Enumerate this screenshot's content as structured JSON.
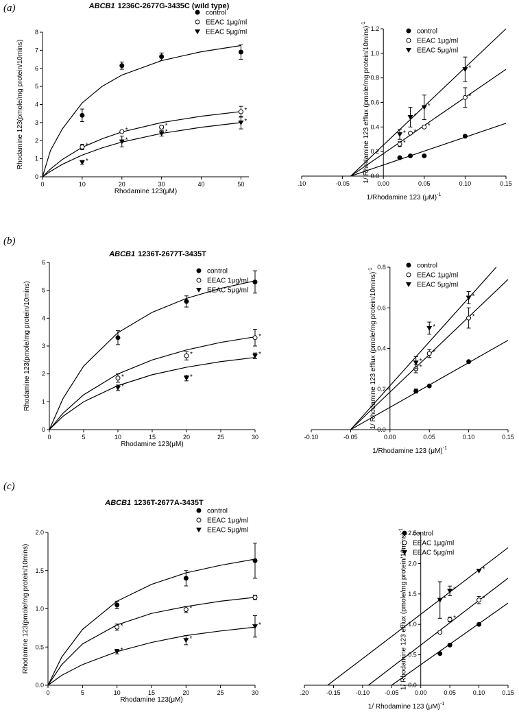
{
  "chart_data": [
    {
      "type": "scatter",
      "axes": "box",
      "panel_label": "(a)",
      "title": {
        "gene": "ABCB1",
        "text": "1236C-2677G-3435C (wild type)"
      },
      "x_label": "Rhodamine 123(μM)",
      "y_label": "Rhodamine 123(pmole/mg protein/10mins)",
      "xlim": [
        0,
        52
      ],
      "xticks": [
        0,
        10,
        20,
        30,
        40,
        50
      ],
      "ylim": [
        0,
        8
      ],
      "yticks": [
        0,
        1,
        2,
        3,
        4,
        5,
        6,
        7,
        8
      ],
      "series": [
        {
          "name": "control",
          "marker": "filled-circle",
          "color": "#000000",
          "x": [
            10,
            20,
            30,
            50
          ],
          "values": [
            3.4,
            6.15,
            6.65,
            6.9
          ],
          "errors": [
            0.35,
            0.2,
            0.2,
            0.4
          ]
        },
        {
          "name": "EEAC 1μg/ml",
          "marker": "open-circle",
          "color": "#000000",
          "x": [
            10,
            20,
            30,
            50
          ],
          "values": [
            1.65,
            2.5,
            2.75,
            3.6
          ],
          "errors": [
            0.15,
            null,
            0.1,
            0.3
          ],
          "point_labels": [
            "*",
            "*",
            "*",
            "*"
          ]
        },
        {
          "name": "EEAC 5μg/ml",
          "marker": "filled-triangle-down",
          "color": "#000000",
          "x": [
            10,
            20,
            30,
            50
          ],
          "values": [
            0.8,
            1.95,
            2.4,
            3.0
          ],
          "errors": [
            0.1,
            0.3,
            0.15,
            0.35
          ],
          "point_labels": [
            "*",
            "*",
            "*",
            "*"
          ]
        }
      ],
      "fits": [
        {
          "x": [
            0,
            2,
            5,
            10,
            15,
            20,
            30,
            40,
            50
          ],
          "values": [
            0,
            1.45,
            2.65,
            4.09,
            5.0,
            5.63,
            6.43,
            6.92,
            7.26
          ]
        },
        {
          "x": [
            0,
            2,
            5,
            10,
            15,
            20,
            30,
            40,
            50
          ],
          "values": [
            0,
            0.43,
            0.96,
            1.63,
            2.1,
            2.48,
            3.0,
            3.35,
            3.61
          ]
        },
        {
          "x": [
            0,
            2,
            5,
            10,
            15,
            20,
            30,
            40,
            50
          ],
          "values": [
            0,
            0.3,
            0.69,
            1.2,
            1.6,
            1.92,
            2.4,
            2.74,
            3.0
          ]
        }
      ]
    },
    {
      "type": "scatter",
      "axes": "origin",
      "x_label": "1/Rhodamine 123 (μM)",
      "x_label_exponent": "-1",
      "y_label": "1/ Rhodamine 123 efflux (pmole/mg protein/10mins)",
      "y_label_exponent": "-1",
      "xlim": [
        -0.1,
        0.15
      ],
      "xticks": [
        {
          "value": -0.1,
          "label": ".10"
        },
        {
          "value": -0.05,
          "label": "-0.05"
        },
        {
          "value": 0,
          "label": "0.00"
        },
        {
          "value": 0.05,
          "label": "0.05"
        },
        {
          "value": 0.1,
          "label": "0.10"
        },
        {
          "value": 0.15,
          "label": "0.15"
        }
      ],
      "ylim": [
        0,
        1.2
      ],
      "yticks": [
        {
          "value": 0,
          "label": "0.0"
        },
        0.2,
        0.4,
        0.6,
        0.8,
        {
          "value": 1,
          "label": "1.0"
        },
        1.2
      ],
      "series": [
        {
          "name": "control",
          "marker": "filled-circle",
          "color": "#000000",
          "x": [
            0.02,
            0.033,
            0.05,
            0.1
          ],
          "values": [
            0.15,
            0.165,
            0.165,
            0.325
          ],
          "errors": [
            null,
            null,
            null,
            null
          ]
        },
        {
          "name": "EEAC 1μg/ml",
          "marker": "open-circle",
          "color": "#000000",
          "x": [
            0.02,
            0.033,
            0.05,
            0.1
          ],
          "values": [
            0.26,
            0.35,
            0.4,
            0.64
          ],
          "errors": [
            0.02,
            null,
            null,
            0.08
          ],
          "point_labels": [
            "*",
            "*",
            "*",
            "*"
          ]
        },
        {
          "name": "EEAC 5μg/ml",
          "marker": "filled-triangle-down",
          "color": "#000000",
          "x": [
            0.02,
            0.033,
            0.05,
            0.1
          ],
          "values": [
            0.34,
            0.48,
            0.56,
            0.87
          ],
          "errors": [
            0.04,
            0.08,
            0.1,
            0.1
          ],
          "point_labels": [
            "*",
            "*",
            "*",
            "*"
          ]
        }
      ],
      "fits": [
        {
          "x": [
            -0.04,
            0.15
          ],
          "values": [
            0,
            0.43
          ]
        },
        {
          "x": [
            -0.04,
            0.15
          ],
          "values": [
            0,
            0.87
          ]
        },
        {
          "x": [
            -0.04,
            0.15
          ],
          "values": [
            0,
            1.2
          ]
        }
      ]
    },
    {
      "type": "scatter",
      "axes": "box",
      "panel_label": "(b)",
      "title": {
        "gene": "ABCB1",
        "text": "1236T-2677T-3435T"
      },
      "x_label": "Rhodamine 123(μM)",
      "y_label": "Rhodamine 123(pmole/mg protein/10mins)",
      "xlim": [
        0,
        30
      ],
      "xticks": [
        0,
        5,
        10,
        15,
        20,
        25,
        30
      ],
      "ylim": [
        0,
        6
      ],
      "yticks": [
        0,
        1,
        2,
        3,
        4,
        5,
        6
      ],
      "series": [
        {
          "name": "control",
          "marker": "filled-circle",
          "color": "#000000",
          "x": [
            10,
            20,
            30
          ],
          "values": [
            3.3,
            4.6,
            5.3
          ],
          "errors": [
            0.25,
            0.2,
            0.4
          ]
        },
        {
          "name": "EEAC 1μg/ml",
          "marker": "open-circle",
          "color": "#000000",
          "x": [
            10,
            20,
            30
          ],
          "values": [
            1.85,
            2.65,
            3.3
          ],
          "errors": [
            0.15,
            0.15,
            0.3
          ],
          "point_labels": [
            "*",
            "*",
            "*"
          ]
        },
        {
          "name": "EEAC 5μg/ml",
          "marker": "filled-triangle-down",
          "color": "#000000",
          "x": [
            10,
            20,
            30
          ],
          "values": [
            1.5,
            1.85,
            2.65
          ],
          "errors": [
            0.1,
            0.1,
            0.1
          ],
          "point_labels": [
            "*",
            "*",
            "*"
          ]
        }
      ],
      "fits": [
        {
          "x": [
            0,
            2,
            5,
            10,
            15,
            20,
            25,
            30
          ],
          "values": [
            0,
            1.12,
            2.28,
            3.48,
            4.21,
            4.71,
            5.07,
            5.34
          ]
        },
        {
          "x": [
            0,
            2,
            5,
            10,
            15,
            20,
            25,
            30
          ],
          "values": [
            0,
            0.59,
            1.25,
            2.0,
            2.5,
            2.86,
            3.13,
            3.33
          ]
        },
        {
          "x": [
            0,
            2,
            5,
            10,
            15,
            20,
            25,
            30
          ],
          "values": [
            0,
            0.48,
            1.0,
            1.58,
            1.97,
            2.24,
            2.44,
            2.59
          ]
        }
      ]
    },
    {
      "type": "scatter",
      "axes": "origin",
      "x_label": "1/Rhodamine 123 (μM)",
      "x_label_exponent": "-1",
      "y_label": "1/ Rhodamine 123 efflux (pmole/mg protein/10mins)",
      "y_label_exponent": "-1",
      "xlim": [
        -0.1,
        0.15
      ],
      "xticks": [
        {
          "value": -0.1,
          "label": "-0.10"
        },
        {
          "value": -0.05,
          "label": "-0.05"
        },
        {
          "value": 0,
          "label": "0.00"
        },
        {
          "value": 0.05,
          "label": "0.05"
        },
        {
          "value": 0.1,
          "label": "0.10"
        },
        {
          "value": 0.15,
          "label": "0.15"
        }
      ],
      "ylim": [
        0,
        0.8
      ],
      "yticks": [
        {
          "value": 0,
          "label": "0.0"
        },
        0.2,
        0.4,
        0.6,
        0.8
      ],
      "series": [
        {
          "name": "control",
          "marker": "filled-circle",
          "color": "#000000",
          "x": [
            0.033,
            0.05,
            0.1
          ],
          "values": [
            0.19,
            0.215,
            0.335
          ],
          "errors": [
            0.01,
            null,
            null
          ]
        },
        {
          "name": "EEAC 1μg/ml",
          "marker": "open-circle",
          "color": "#000000",
          "x": [
            0.033,
            0.05,
            0.1
          ],
          "values": [
            0.3,
            0.375,
            0.55
          ],
          "errors": [
            0.02,
            0.02,
            0.05
          ],
          "point_labels": [
            "*",
            "*",
            "*"
          ]
        },
        {
          "name": "EEAC 5μg/ml",
          "marker": "filled-triangle-down",
          "color": "#000000",
          "x": [
            0.033,
            0.05,
            0.1
          ],
          "values": [
            0.33,
            0.5,
            0.65
          ],
          "errors": [
            0.03,
            0.03,
            0.03
          ],
          "point_labels": [
            "*",
            "*",
            "*"
          ]
        }
      ],
      "fits": [
        {
          "x": [
            -0.05,
            0.15
          ],
          "values": [
            0,
            0.44
          ]
        },
        {
          "x": [
            -0.05,
            0.15
          ],
          "values": [
            0,
            0.74
          ]
        },
        {
          "x": [
            -0.05,
            0.135
          ],
          "values": [
            0,
            0.8
          ]
        }
      ]
    },
    {
      "type": "scatter",
      "axes": "box",
      "panel_label": "(c)",
      "title": {
        "gene": "ABCB1",
        "text": "1236T-2677A-3435T"
      },
      "x_label": "Rhodamine 123(μM)",
      "y_label": "Rhodamine 123(pmole/mg protein/10mins)",
      "xlim": [
        0,
        30
      ],
      "xticks": [
        0,
        5,
        10,
        15,
        20,
        25,
        30
      ],
      "ylim": [
        0,
        2
      ],
      "yticks": [
        {
          "value": 0,
          "label": "0.0"
        },
        0.5,
        {
          "value": 1,
          "label": "1.0"
        },
        1.5,
        {
          "value": 2,
          "label": "2.0"
        }
      ],
      "series": [
        {
          "name": "control",
          "marker": "filled-circle",
          "color": "#000000",
          "x": [
            10,
            20,
            30
          ],
          "values": [
            1.05,
            1.4,
            1.63
          ],
          "errors": [
            0.05,
            0.1,
            0.23
          ]
        },
        {
          "name": "EEAC 1μg/ml",
          "marker": "open-circle",
          "color": "#000000",
          "x": [
            10,
            20,
            30
          ],
          "values": [
            0.76,
            0.99,
            1.15
          ],
          "errors": [
            0.04,
            0.04,
            0.03
          ],
          "point_labels": [
            "*",
            "*",
            null
          ]
        },
        {
          "name": "EEAC 5μg/ml",
          "marker": "filled-triangle-down",
          "color": "#000000",
          "x": [
            10,
            20,
            30
          ],
          "values": [
            0.44,
            0.59,
            0.77
          ],
          "errors": [
            0.03,
            0.06,
            0.14
          ],
          "point_labels": [
            "*",
            "*",
            "*"
          ]
        }
      ],
      "fits": [
        {
          "x": [
            0,
            2,
            5,
            10,
            15,
            20,
            25,
            30
          ],
          "values": [
            0,
            0.37,
            0.73,
            1.1,
            1.32,
            1.47,
            1.57,
            1.65
          ]
        },
        {
          "x": [
            0,
            2,
            5,
            10,
            15,
            20,
            25,
            30
          ],
          "values": [
            0,
            0.27,
            0.54,
            0.79,
            0.94,
            1.03,
            1.1,
            1.15
          ]
        },
        {
          "x": [
            0,
            2,
            5,
            10,
            15,
            20,
            25,
            30
          ],
          "values": [
            0,
            0.13,
            0.27,
            0.44,
            0.56,
            0.65,
            0.71,
            0.76
          ]
        }
      ]
    },
    {
      "type": "scatter",
      "axes": "origin",
      "x_label": "1/ Rhodamine 123 (μM)",
      "x_label_exponent": "-1",
      "y_label": "1/ Rhodamine 123 efflux (pmole/mg protein/10mins)",
      "y_label_exponent": "-1",
      "xlim": [
        -0.2,
        0.15
      ],
      "xticks": [
        {
          "value": -0.2,
          "label": ".20"
        },
        {
          "value": -0.15,
          "label": "-0.15"
        },
        {
          "value": -0.1,
          "label": "-0.10"
        },
        {
          "value": -0.05,
          "label": "-0.05"
        },
        {
          "value": 0,
          "label": "0.00"
        },
        {
          "value": 0.05,
          "label": "0.05"
        },
        {
          "value": 0.1,
          "label": "0.10"
        },
        {
          "value": 0.15,
          "label": "0.15"
        }
      ],
      "ylim": [
        0,
        2.5
      ],
      "yticks": [
        {
          "value": 0,
          "label": "0.0"
        },
        0.5,
        {
          "value": 1,
          "label": "1.0"
        },
        1.5,
        {
          "value": 2,
          "label": "2.0"
        },
        2.5
      ],
      "series": [
        {
          "name": "control",
          "marker": "filled-circle",
          "color": "#000000",
          "x": [
            0.033,
            0.05,
            0.1
          ],
          "values": [
            0.52,
            0.66,
            1.0
          ],
          "errors": [
            null,
            null,
            null
          ]
        },
        {
          "name": "EEAC 1μg/ml",
          "marker": "open-circle",
          "color": "#000000",
          "x": [
            0.033,
            0.05,
            0.1
          ],
          "values": [
            0.87,
            1.08,
            1.4
          ],
          "errors": [
            null,
            0.04,
            0.06
          ],
          "point_labels": [
            null,
            "*",
            "*"
          ]
        },
        {
          "name": "EEAC 5μg/ml",
          "marker": "filled-triangle-down",
          "color": "#000000",
          "x": [
            0.033,
            0.05,
            0.1
          ],
          "values": [
            1.4,
            1.55,
            1.88
          ],
          "errors": [
            0.3,
            0.08,
            null
          ],
          "point_labels": [
            "*",
            "*",
            "*"
          ]
        }
      ],
      "fits": [
        {
          "x": [
            -0.05,
            0.15
          ],
          "values": [
            0,
            1.35
          ]
        },
        {
          "x": [
            -0.09,
            0.15
          ],
          "values": [
            0,
            1.76
          ]
        },
        {
          "x": [
            -0.16,
            0.15
          ],
          "values": [
            0,
            2.26
          ]
        }
      ]
    }
  ]
}
